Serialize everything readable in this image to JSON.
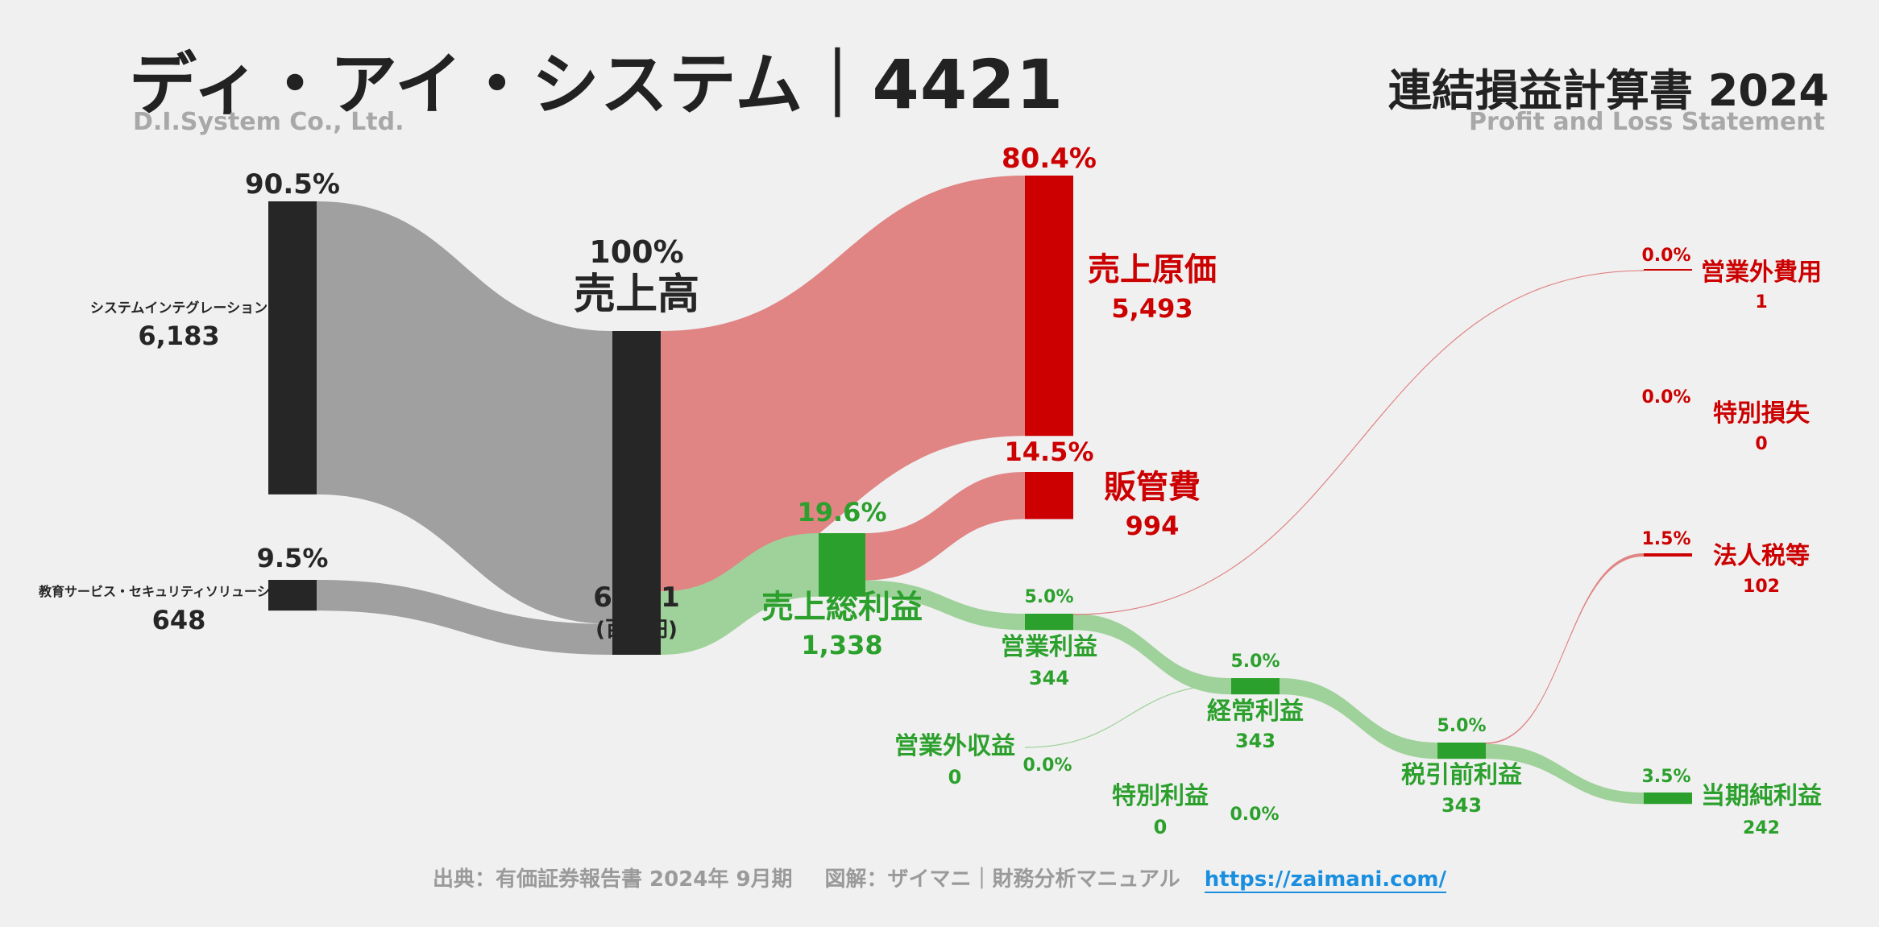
{
  "header": {
    "title": "ディ・アイ・システム｜4421",
    "subtitle": "D.I.System Co., Ltd.",
    "right_title": "連結損益計算書 2024",
    "right_subtitle": "Profit and Loss Statement"
  },
  "footer": {
    "source": "出典：有価証券報告書 2024年 9月期",
    "credit": "図解：ザイマニ｜財務分析マニュアル",
    "url": "https://zaimani.com/"
  },
  "colors": {
    "dark": "#262626",
    "gray_flow": "#a0a0a0",
    "red": "#cc0000",
    "red_flow": "#e08484",
    "green": "#2ca02c",
    "green_flow": "#9fd19a",
    "background": "#f0f0f0"
  },
  "chart_data": {
    "type": "sankey",
    "unit": "(百万円)",
    "nodes": [
      {
        "id": "sys",
        "label": "システムインテグレーション",
        "value": 6183,
        "value_label": "6,183",
        "pct": "90.5%"
      },
      {
        "id": "edu",
        "label": "教育サービス・セキュリティソリューション",
        "value": 648,
        "value_label": "648",
        "pct": "9.5%"
      },
      {
        "id": "rev",
        "label": "売上高",
        "value": 6831,
        "value_label": "6,831",
        "pct": "100%"
      },
      {
        "id": "cogs",
        "label": "売上原価",
        "value": 5493,
        "value_label": "5,493",
        "pct": "80.4%"
      },
      {
        "id": "gross",
        "label": "売上総利益",
        "value": 1338,
        "value_label": "1,338",
        "pct": "19.6%"
      },
      {
        "id": "sga",
        "label": "販管費",
        "value": 994,
        "value_label": "994",
        "pct": "14.5%"
      },
      {
        "id": "op",
        "label": "営業利益",
        "value": 344,
        "value_label": "344",
        "pct": "5.0%"
      },
      {
        "id": "nonop_inc",
        "label": "営業外収益",
        "value": 0,
        "value_label": "0",
        "pct": "0.0%"
      },
      {
        "id": "nonop_exp",
        "label": "営業外費用",
        "value": 1,
        "value_label": "1",
        "pct": "0.0%"
      },
      {
        "id": "ord",
        "label": "経常利益",
        "value": 343,
        "value_label": "343",
        "pct": "5.0%"
      },
      {
        "id": "sp_gain",
        "label": "特別利益",
        "value": 0,
        "value_label": "0",
        "pct": "0.0%"
      },
      {
        "id": "sp_loss",
        "label": "特別損失",
        "value": 0,
        "value_label": "0",
        "pct": "0.0%"
      },
      {
        "id": "pretax",
        "label": "税引前利益",
        "value": 343,
        "value_label": "343",
        "pct": "5.0%"
      },
      {
        "id": "tax",
        "label": "法人税等",
        "value": 102,
        "value_label": "102",
        "pct": "1.5%"
      },
      {
        "id": "net",
        "label": "当期純利益",
        "value": 242,
        "value_label": "242",
        "pct": "3.5%"
      }
    ],
    "links": [
      {
        "source": "sys",
        "target": "rev",
        "value": 6183
      },
      {
        "source": "edu",
        "target": "rev",
        "value": 648
      },
      {
        "source": "rev",
        "target": "cogs",
        "value": 5493
      },
      {
        "source": "rev",
        "target": "gross",
        "value": 1338
      },
      {
        "source": "gross",
        "target": "sga",
        "value": 994
      },
      {
        "source": "gross",
        "target": "op",
        "value": 344
      },
      {
        "source": "op",
        "target": "nonop_exp",
        "value": 1
      },
      {
        "source": "op",
        "target": "ord",
        "value": 343
      },
      {
        "source": "nonop_inc",
        "target": "ord",
        "value": 0
      },
      {
        "source": "ord",
        "target": "pretax",
        "value": 343
      },
      {
        "source": "pretax",
        "target": "tax",
        "value": 102
      },
      {
        "source": "pretax",
        "target": "net",
        "value": 242
      }
    ]
  }
}
